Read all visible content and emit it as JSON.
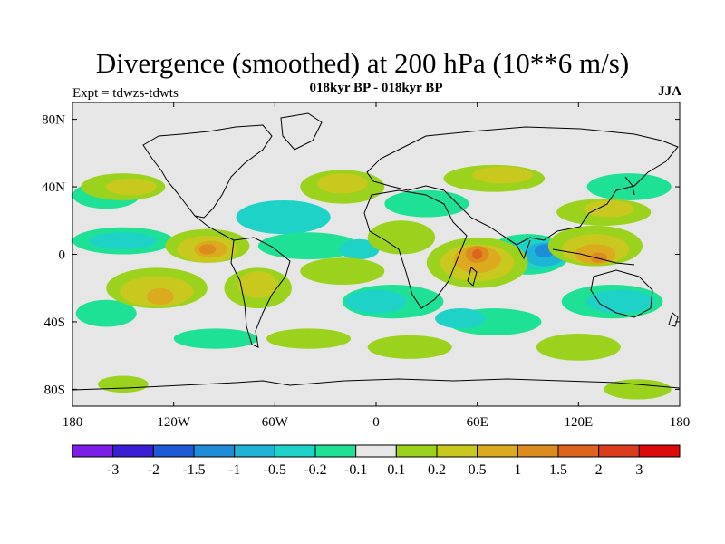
{
  "title": "Divergence (smoothed) at 200 hPa (10**6 m/s)",
  "subtitle": "018kyr BP - 018kyr BP",
  "experiment": "Expt = tdwzs-tdwts",
  "season": "JJA",
  "map": {
    "projection": "equirectangular",
    "lon_range": [
      -180,
      180
    ],
    "lat_range": [
      -90,
      90
    ],
    "background_color": "#e6e6e6",
    "coastline_color": "#000000",
    "lat_ticks": [
      {
        "value": 80,
        "label": "80N"
      },
      {
        "value": 40,
        "label": "40N"
      },
      {
        "value": 0,
        "label": "0"
      },
      {
        "value": -40,
        "label": "40S"
      },
      {
        "value": -80,
        "label": "80S"
      }
    ],
    "lon_ticks": [
      {
        "value": -180,
        "label": "180"
      },
      {
        "value": -120,
        "label": "120W"
      },
      {
        "value": -60,
        "label": "60W"
      },
      {
        "value": 0,
        "label": "0"
      },
      {
        "value": 60,
        "label": "60E"
      },
      {
        "value": 120,
        "label": "120E"
      },
      {
        "value": 180,
        "label": "180"
      }
    ]
  },
  "colorbar": {
    "colors": [
      "#7d1ee6",
      "#3a1ed6",
      "#1e5ad6",
      "#1e8cd6",
      "#1eb4d6",
      "#1ed2c8",
      "#1ee196",
      "#e6e6e6",
      "#9bd21e",
      "#c8c81e",
      "#dcaa1e",
      "#dc8c1e",
      "#dc641e",
      "#dc3c1e",
      "#dc0a0a"
    ],
    "boundaries": [
      "-3",
      "-2",
      "-1.5",
      "-1",
      "-0.5",
      "-0.2",
      "-0.1",
      "0.1",
      "0.2",
      "0.5",
      "1",
      "1.5",
      "2",
      "3"
    ]
  },
  "fields": [
    {
      "level": "neg-3",
      "color": "#1ee196",
      "lon": -160,
      "lat": 35,
      "rx": 20,
      "ry": 8
    },
    {
      "level": "neg-3",
      "color": "#1ee196",
      "lon": -150,
      "lat": 8,
      "rx": 30,
      "ry": 8
    },
    {
      "level": "neg-4",
      "color": "#1ed2c8",
      "lon": -150,
      "lat": 8,
      "rx": 20,
      "ry": 5
    },
    {
      "level": "neg-3",
      "color": "#1ee196",
      "lon": -160,
      "lat": -35,
      "rx": 18,
      "ry": 8
    },
    {
      "level": "neg-4",
      "color": "#1ed2c8",
      "lon": -55,
      "lat": 22,
      "rx": 28,
      "ry": 10
    },
    {
      "level": "neg-3",
      "color": "#1ee196",
      "lon": -40,
      "lat": 5,
      "rx": 30,
      "ry": 8
    },
    {
      "level": "neg-4",
      "color": "#1ed2c8",
      "lon": -10,
      "lat": 3,
      "rx": 12,
      "ry": 6
    },
    {
      "level": "neg-3",
      "color": "#1ee196",
      "lon": 10,
      "lat": -28,
      "rx": 30,
      "ry": 10
    },
    {
      "level": "neg-4",
      "color": "#1ed2c8",
      "lon": 0,
      "lat": -28,
      "rx": 18,
      "ry": 7
    },
    {
      "level": "neg-3",
      "color": "#1ee196",
      "lon": 30,
      "lat": 30,
      "rx": 25,
      "ry": 8
    },
    {
      "level": "neg-3",
      "color": "#1ee196",
      "lon": 90,
      "lat": 0,
      "rx": 25,
      "ry": 12
    },
    {
      "level": "neg-4",
      "color": "#1ed2c8",
      "lon": 95,
      "lat": 0,
      "rx": 20,
      "ry": 9
    },
    {
      "level": "neg-5",
      "color": "#1eb4d6",
      "lon": 100,
      "lat": 0,
      "rx": 12,
      "ry": 7
    },
    {
      "level": "neg-6",
      "color": "#1e8cd6",
      "lon": 100,
      "lat": 2,
      "rx": 6,
      "ry": 4
    },
    {
      "level": "neg-3",
      "color": "#1ee196",
      "lon": 140,
      "lat": -28,
      "rx": 30,
      "ry": 10
    },
    {
      "level": "neg-4",
      "color": "#1ed2c8",
      "lon": 145,
      "lat": -28,
      "rx": 20,
      "ry": 7
    },
    {
      "level": "neg-3",
      "color": "#1ee196",
      "lon": 70,
      "lat": -40,
      "rx": 28,
      "ry": 8
    },
    {
      "level": "neg-4",
      "color": "#1ed2c8",
      "lon": 50,
      "lat": -38,
      "rx": 15,
      "ry": 6
    },
    {
      "level": "neg-3",
      "color": "#1ee196",
      "lon": 150,
      "lat": 40,
      "rx": 25,
      "ry": 8
    },
    {
      "level": "neg-3",
      "color": "#1ee196",
      "lon": -95,
      "lat": -50,
      "rx": 25,
      "ry": 6
    },
    {
      "level": "pos-1",
      "color": "#9bd21e",
      "lon": -150,
      "lat": 40,
      "rx": 25,
      "ry": 8
    },
    {
      "level": "pos-2",
      "color": "#c8c81e",
      "lon": -145,
      "lat": 40,
      "rx": 15,
      "ry": 5
    },
    {
      "level": "pos-1",
      "color": "#9bd21e",
      "lon": -130,
      "lat": -20,
      "rx": 30,
      "ry": 12
    },
    {
      "level": "pos-2",
      "color": "#c8c81e",
      "lon": -130,
      "lat": -22,
      "rx": 22,
      "ry": 9
    },
    {
      "level": "pos-3",
      "color": "#dcaa1e",
      "lon": -128,
      "lat": -25,
      "rx": 8,
      "ry": 5
    },
    {
      "level": "pos-1",
      "color": "#9bd21e",
      "lon": -100,
      "lat": 5,
      "rx": 25,
      "ry": 10
    },
    {
      "level": "pos-2",
      "color": "#c8c81e",
      "lon": -100,
      "lat": 3,
      "rx": 18,
      "ry": 8
    },
    {
      "level": "pos-3",
      "color": "#dcaa1e",
      "lon": -98,
      "lat": 3,
      "rx": 10,
      "ry": 5
    },
    {
      "level": "pos-4",
      "color": "#dc8c1e",
      "lon": -100,
      "lat": 3,
      "rx": 5,
      "ry": 3
    },
    {
      "level": "pos-1",
      "color": "#9bd21e",
      "lon": -70,
      "lat": -20,
      "rx": 20,
      "ry": 12
    },
    {
      "level": "pos-2",
      "color": "#c8c81e",
      "lon": -70,
      "lat": -18,
      "rx": 12,
      "ry": 8
    },
    {
      "level": "pos-1",
      "color": "#9bd21e",
      "lon": -20,
      "lat": 40,
      "rx": 25,
      "ry": 10
    },
    {
      "level": "pos-2",
      "color": "#c8c81e",
      "lon": -20,
      "lat": 42,
      "rx": 15,
      "ry": 6
    },
    {
      "level": "pos-1",
      "color": "#9bd21e",
      "lon": -20,
      "lat": -10,
      "rx": 25,
      "ry": 8
    },
    {
      "level": "pos-1",
      "color": "#9bd21e",
      "lon": 15,
      "lat": 10,
      "rx": 20,
      "ry": 10
    },
    {
      "level": "pos-1",
      "color": "#9bd21e",
      "lon": 60,
      "lat": -5,
      "rx": 30,
      "ry": 15
    },
    {
      "level": "pos-2",
      "color": "#c8c81e",
      "lon": 60,
      "lat": -5,
      "rx": 22,
      "ry": 11
    },
    {
      "level": "pos-3",
      "color": "#dcaa1e",
      "lon": 60,
      "lat": -3,
      "rx": 14,
      "ry": 8
    },
    {
      "level": "pos-4",
      "color": "#dc8c1e",
      "lon": 60,
      "lat": 0,
      "rx": 7,
      "ry": 5
    },
    {
      "level": "pos-5",
      "color": "#dc641e",
      "lon": 60,
      "lat": 0,
      "rx": 3,
      "ry": 3
    },
    {
      "level": "pos-1",
      "color": "#9bd21e",
      "lon": 70,
      "lat": 45,
      "rx": 30,
      "ry": 8
    },
    {
      "level": "pos-2",
      "color": "#c8c81e",
      "lon": 75,
      "lat": 47,
      "rx": 18,
      "ry": 5
    },
    {
      "level": "pos-1",
      "color": "#9bd21e",
      "lon": 130,
      "lat": 5,
      "rx": 28,
      "ry": 12
    },
    {
      "level": "pos-2",
      "color": "#c8c81e",
      "lon": 130,
      "lat": 3,
      "rx": 20,
      "ry": 9
    },
    {
      "level": "pos-3",
      "color": "#dcaa1e",
      "lon": 130,
      "lat": 0,
      "rx": 12,
      "ry": 6
    },
    {
      "level": "pos-4",
      "color": "#dc8c1e",
      "lon": 132,
      "lat": -2,
      "rx": 5,
      "ry": 3
    },
    {
      "level": "pos-1",
      "color": "#9bd21e",
      "lon": 135,
      "lat": 25,
      "rx": 28,
      "ry": 8
    },
    {
      "level": "pos-2",
      "color": "#c8c81e",
      "lon": 138,
      "lat": 27,
      "rx": 15,
      "ry": 5
    },
    {
      "level": "pos-1",
      "color": "#9bd21e",
      "lon": 120,
      "lat": -55,
      "rx": 25,
      "ry": 8
    },
    {
      "level": "pos-1",
      "color": "#9bd21e",
      "lon": 155,
      "lat": -80,
      "rx": 20,
      "ry": 6
    },
    {
      "level": "pos-1",
      "color": "#9bd21e",
      "lon": -150,
      "lat": -77,
      "rx": 15,
      "ry": 5
    },
    {
      "level": "pos-1",
      "color": "#9bd21e",
      "lon": -40,
      "lat": -50,
      "rx": 25,
      "ry": 6
    },
    {
      "level": "pos-1",
      "color": "#9bd21e",
      "lon": 20,
      "lat": -55,
      "rx": 25,
      "ry": 7
    }
  ]
}
